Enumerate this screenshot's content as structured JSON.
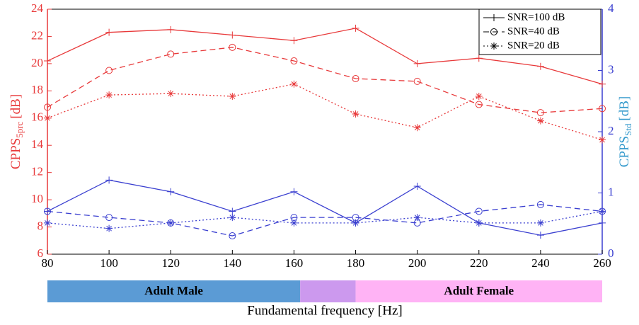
{
  "chart_data": {
    "type": "line",
    "x": [
      80,
      100,
      120,
      140,
      160,
      180,
      200,
      220,
      240,
      260
    ],
    "xlim": [
      80,
      260
    ],
    "xticks": [
      80,
      100,
      120,
      140,
      160,
      180,
      200,
      220,
      240,
      260
    ],
    "ylim": [
      6,
      24
    ],
    "yticks": [
      6,
      8,
      10,
      12,
      14,
      16,
      18,
      20,
      22,
      24
    ],
    "y2lim": [
      0,
      4
    ],
    "y2ticks": [
      0,
      1,
      2,
      3,
      4
    ],
    "ylabel": {
      "main": "CPPS",
      "sub": "5prc",
      "unit": "[dB]"
    },
    "y2label": {
      "main": "CPPS",
      "sub": "Std",
      "unit": "[dB]"
    },
    "xlabel": "Fundamental  frequency  [Hz]",
    "left_axis_color": "#e8393a",
    "right_axis_color": "#3a3fd0",
    "y2label_color": "#3399cc",
    "legend": "upper right",
    "series": [
      {
        "name": "SNR=100 dB",
        "color": "#e8393a",
        "marker": "plus",
        "dash": "none",
        "values": [
          20.2,
          22.3,
          22.5,
          22.1,
          21.7,
          22.6,
          20.0,
          20.4,
          19.8,
          18.5
        ]
      },
      {
        "name": "SNR=40 dB",
        "color": "#e8393a",
        "marker": "circle",
        "dash": "8,5",
        "values": [
          16.8,
          19.5,
          20.7,
          21.2,
          20.2,
          18.9,
          18.7,
          17.0,
          16.4,
          16.7
        ]
      },
      {
        "name": "SNR=20 dB",
        "color": "#e8393a",
        "marker": "star",
        "dash": "2,3",
        "values": [
          16.0,
          17.7,
          17.8,
          17.6,
          18.5,
          16.3,
          15.3,
          17.6,
          15.8,
          14.4
        ]
      },
      {
        "axis": "y2",
        "color": "#3a3fd0",
        "marker": "plus",
        "dash": "none",
        "values": [
          0.7,
          1.21,
          1.02,
          0.7,
          1.02,
          0.51,
          1.11,
          0.51,
          0.31,
          0.51
        ]
      },
      {
        "axis": "y2",
        "color": "#3a3fd0",
        "marker": "circle",
        "dash": "8,5",
        "values": [
          0.7,
          0.6,
          0.51,
          0.3,
          0.6,
          0.6,
          0.51,
          0.7,
          0.81,
          0.7
        ]
      },
      {
        "axis": "y2",
        "color": "#3a3fd0",
        "marker": "star",
        "dash": "2,3",
        "values": [
          0.51,
          0.42,
          0.51,
          0.6,
          0.51,
          0.51,
          0.6,
          0.51,
          0.51,
          0.7
        ]
      }
    ],
    "regions": [
      {
        "range": [
          80,
          162
        ],
        "color": "#5b9bd5",
        "label": "Adult Male"
      },
      {
        "range": [
          162,
          180
        ],
        "color": "#cc99ee"
      },
      {
        "range": [
          180,
          260
        ],
        "color": "#ffb3f5",
        "label": "Adult Female"
      }
    ]
  }
}
